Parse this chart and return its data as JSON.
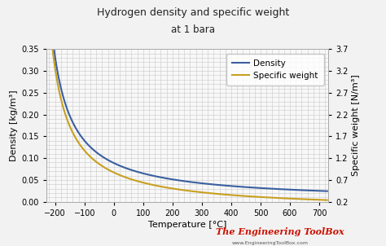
{
  "title_line1": "Hydrogen density and specific weight",
  "title_line2": "at 1 bara",
  "xlabel": "Temperature [°C]",
  "ylabel_left": "Density [kg/m³]",
  "ylabel_right": "Specific weight [N/m³]",
  "legend_density": "Density",
  "legend_sw": "Specific weight",
  "color_density": "#3a5fa0",
  "color_sw": "#c8a020",
  "bg_color": "#f2f2f2",
  "plot_bg_color": "#f8f8f8",
  "grid_color": "#c8c8c8",
  "xlim": [
    -230,
    730
  ],
  "xticks": [
    -200,
    -100,
    0,
    100,
    200,
    300,
    400,
    500,
    600,
    700
  ],
  "ylim_left": [
    0.0,
    0.35
  ],
  "ylim_right": [
    0.2,
    3.7
  ],
  "yticks_left": [
    0.0,
    0.05,
    0.1,
    0.15,
    0.2,
    0.25,
    0.3,
    0.35
  ],
  "yticks_right": [
    0.2,
    0.7,
    1.2,
    1.7,
    2.2,
    2.7,
    3.2,
    3.7
  ],
  "watermark_text": "The Engineering ToolBox",
  "watermark_url": "www.EngineeringToolBox.com",
  "watermark_color": "#cc1100"
}
